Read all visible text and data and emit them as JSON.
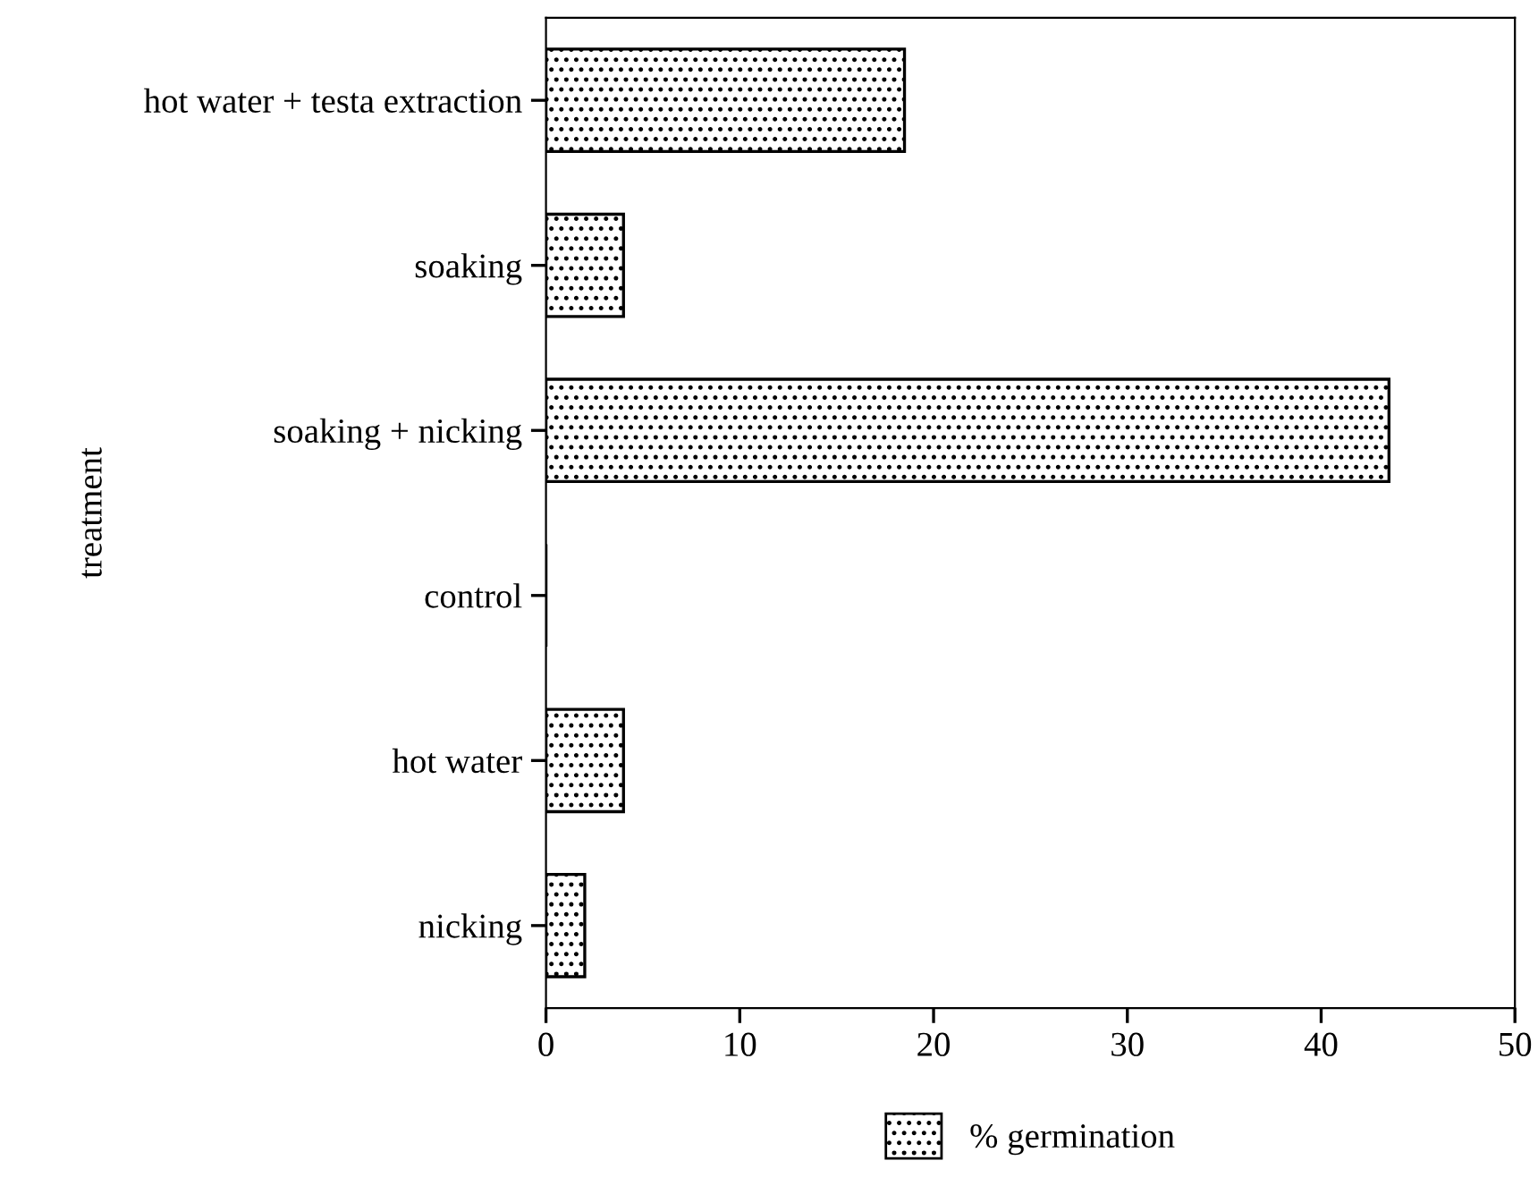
{
  "chart_data": {
    "type": "bar",
    "orientation": "horizontal",
    "ylabel": "treatment",
    "categories": [
      "hot water + testa extraction",
      "soaking",
      "soaking + nicking",
      "control",
      "hot water",
      "nicking"
    ],
    "series": [
      {
        "name": "% germination",
        "color": "#000000",
        "values": [
          18.5,
          4,
          43.5,
          0,
          4,
          2
        ]
      }
    ],
    "xlim": [
      0,
      50
    ],
    "xticks": [
      0,
      10,
      20,
      30,
      40,
      50
    ],
    "grid": false,
    "legend": "bottom"
  }
}
